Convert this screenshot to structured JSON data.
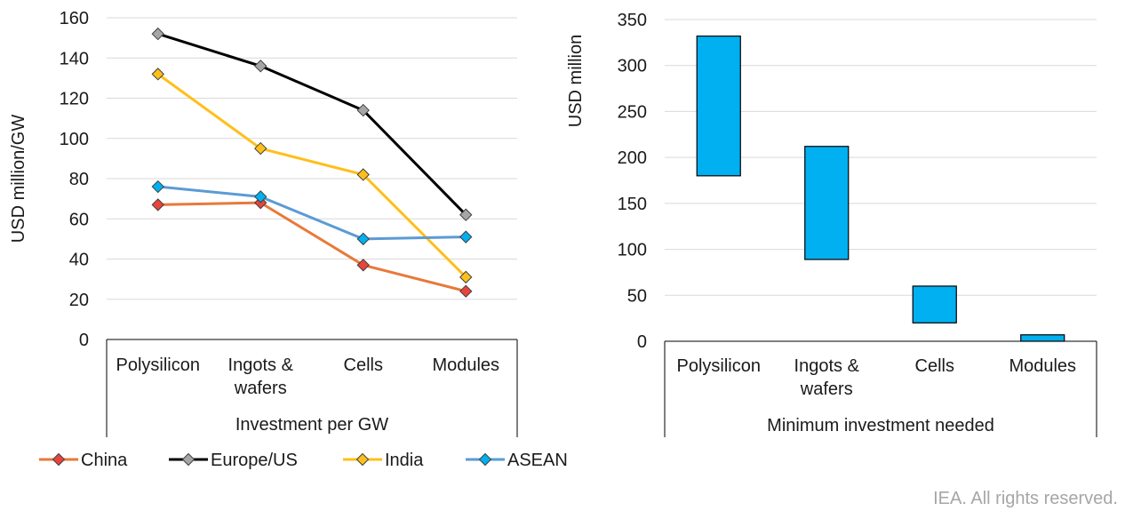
{
  "footer": "IEA. All rights reserved.",
  "colors": {
    "China": "#e8793a",
    "Europe/US": "#000000",
    "India": "#ffbf1a",
    "ASEAN": "#5b9bd5",
    "bar_fill": "#00b0f0",
    "grid": "#d9d9d9",
    "marker_China": "#e8443c",
    "marker_Europe/US": "#a6a6a6",
    "marker_India": "#ffbf1a",
    "marker_ASEAN": "#00b0f0"
  },
  "chart_data": [
    {
      "type": "line",
      "ylabel": "USD million/GW",
      "xlabel": "Investment per GW",
      "ylim": [
        0,
        160
      ],
      "yticks": [
        0,
        20,
        40,
        60,
        80,
        100,
        120,
        140,
        160
      ],
      "grid": true,
      "legend": "bottom",
      "categories": [
        [
          "Polysilicon"
        ],
        [
          "Ingots &",
          "wafers"
        ],
        [
          "Cells"
        ],
        [
          "Modules"
        ]
      ],
      "series": [
        {
          "name": "China",
          "values": [
            67,
            68,
            37,
            24
          ]
        },
        {
          "name": "Europe/US",
          "values": [
            152,
            136,
            114,
            62
          ]
        },
        {
          "name": "India",
          "values": [
            132,
            95,
            82,
            31
          ]
        },
        {
          "name": "ASEAN",
          "values": [
            76,
            71,
            50,
            51
          ]
        }
      ]
    },
    {
      "type": "bar",
      "subtype": "floating-range",
      "ylabel": "USD million",
      "xlabel": "Minimum investment needed",
      "ylim": [
        0,
        350
      ],
      "yticks": [
        0,
        50,
        100,
        150,
        200,
        250,
        300,
        350
      ],
      "grid": true,
      "categories": [
        [
          "Polysilicon"
        ],
        [
          "Ingots &",
          "wafers"
        ],
        [
          "Cells"
        ],
        [
          "Modules"
        ]
      ],
      "ranges": [
        [
          180,
          332
        ],
        [
          89,
          212
        ],
        [
          20,
          60
        ],
        [
          0,
          7
        ]
      ]
    }
  ]
}
